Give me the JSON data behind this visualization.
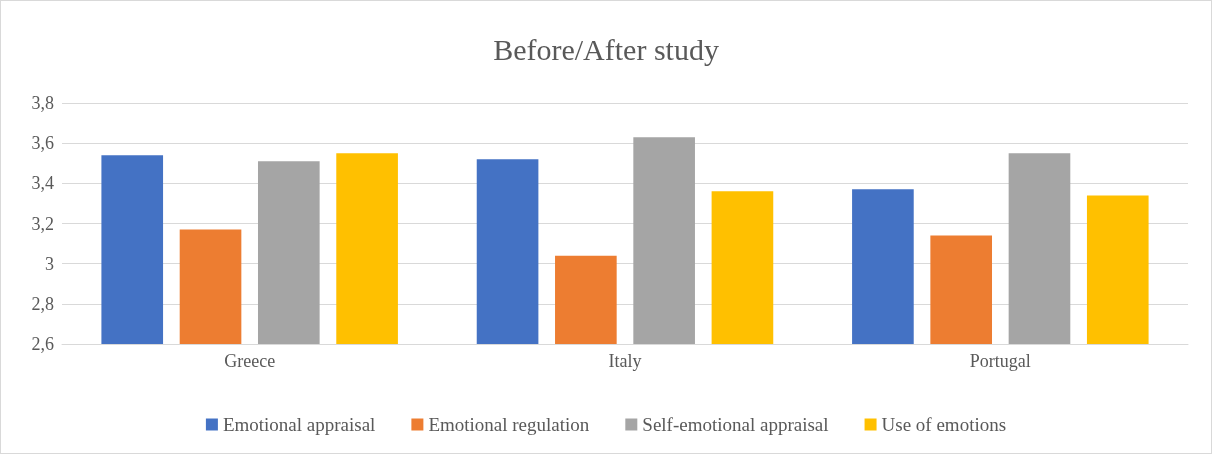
{
  "chart_data": {
    "type": "bar",
    "title": "Before/After study",
    "categories": [
      "Greece",
      "Italy",
      "Portugal"
    ],
    "series": [
      {
        "name": "Emotional appraisal",
        "color": "#4472c4",
        "values": [
          3.54,
          3.52,
          3.37
        ]
      },
      {
        "name": "Emotional regulation",
        "color": "#ed7d31",
        "values": [
          3.17,
          3.04,
          3.14
        ]
      },
      {
        "name": "Self-emotional appraisal",
        "color": "#a5a5a5",
        "values": [
          3.51,
          3.63,
          3.55
        ]
      },
      {
        "name": "Use of emotions",
        "color": "#ffc000",
        "values": [
          3.55,
          3.36,
          3.34
        ]
      }
    ],
    "ylim": [
      2.6,
      3.8
    ],
    "yticks": [
      {
        "value": 2.6,
        "label": "2,6"
      },
      {
        "value": 2.8,
        "label": "2,8"
      },
      {
        "value": 3,
        "label": "3"
      },
      {
        "value": 3.2,
        "label": "3,2"
      },
      {
        "value": 3.4,
        "label": "3,4"
      },
      {
        "value": 3.6,
        "label": "3,6"
      },
      {
        "value": 3.8,
        "label": "3,8"
      }
    ],
    "grid": "y",
    "legend": "bottom"
  }
}
